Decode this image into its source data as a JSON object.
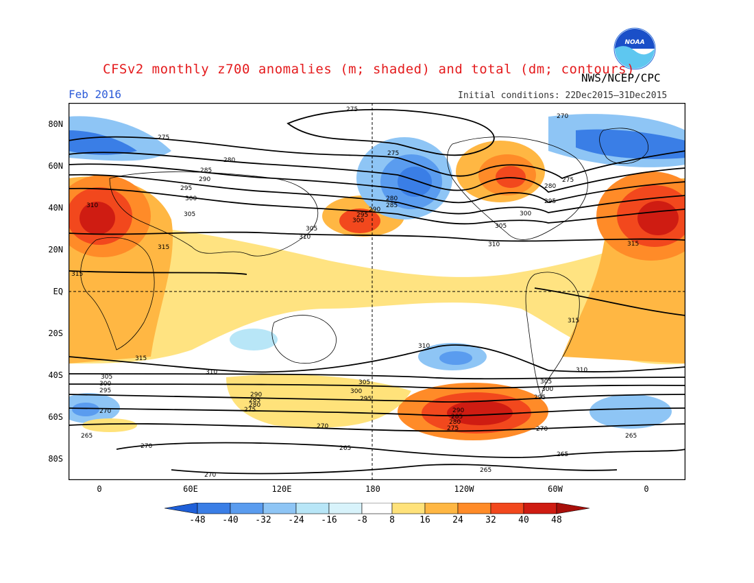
{
  "title": "CFSv2 monthly z700 anomalies (m; shaded) and total (dm; contours)",
  "agency": "NWS/NCEP/CPC",
  "logo_text": "NOAA",
  "valid_month": "Feb 2016",
  "initial_conditions": "Initial conditions: 22Dec2015–31Dec2015",
  "lat_labels": [
    "80N",
    "60N",
    "40N",
    "20N",
    "EQ",
    "20S",
    "40S",
    "60S",
    "80S"
  ],
  "lon_labels": [
    "0",
    "60E",
    "120E",
    "180",
    "120W",
    "60W",
    "0"
  ],
  "colorbar": {
    "levels": [
      "-48",
      "-40",
      "-32",
      "-24",
      "-16",
      "-8",
      "8",
      "16",
      "24",
      "32",
      "40",
      "48"
    ],
    "colors": [
      "#1e5fd8",
      "#3a7ee6",
      "#5a9cef",
      "#8ec5f5",
      "#b8e6f7",
      "#ffffff",
      "#ffe27a",
      "#ffb743",
      "#ff8b28",
      "#f2481d",
      "#cf1c12",
      "#a80f0a"
    ]
  },
  "contour_labels": [
    "275",
    "270",
    "280",
    "285",
    "290",
    "295",
    "300",
    "305",
    "310",
    "315",
    "265"
  ],
  "colors": {
    "title": "#e41a1c",
    "month": "#2b5ad8",
    "ocean_logo": "#1a4fc8"
  }
}
